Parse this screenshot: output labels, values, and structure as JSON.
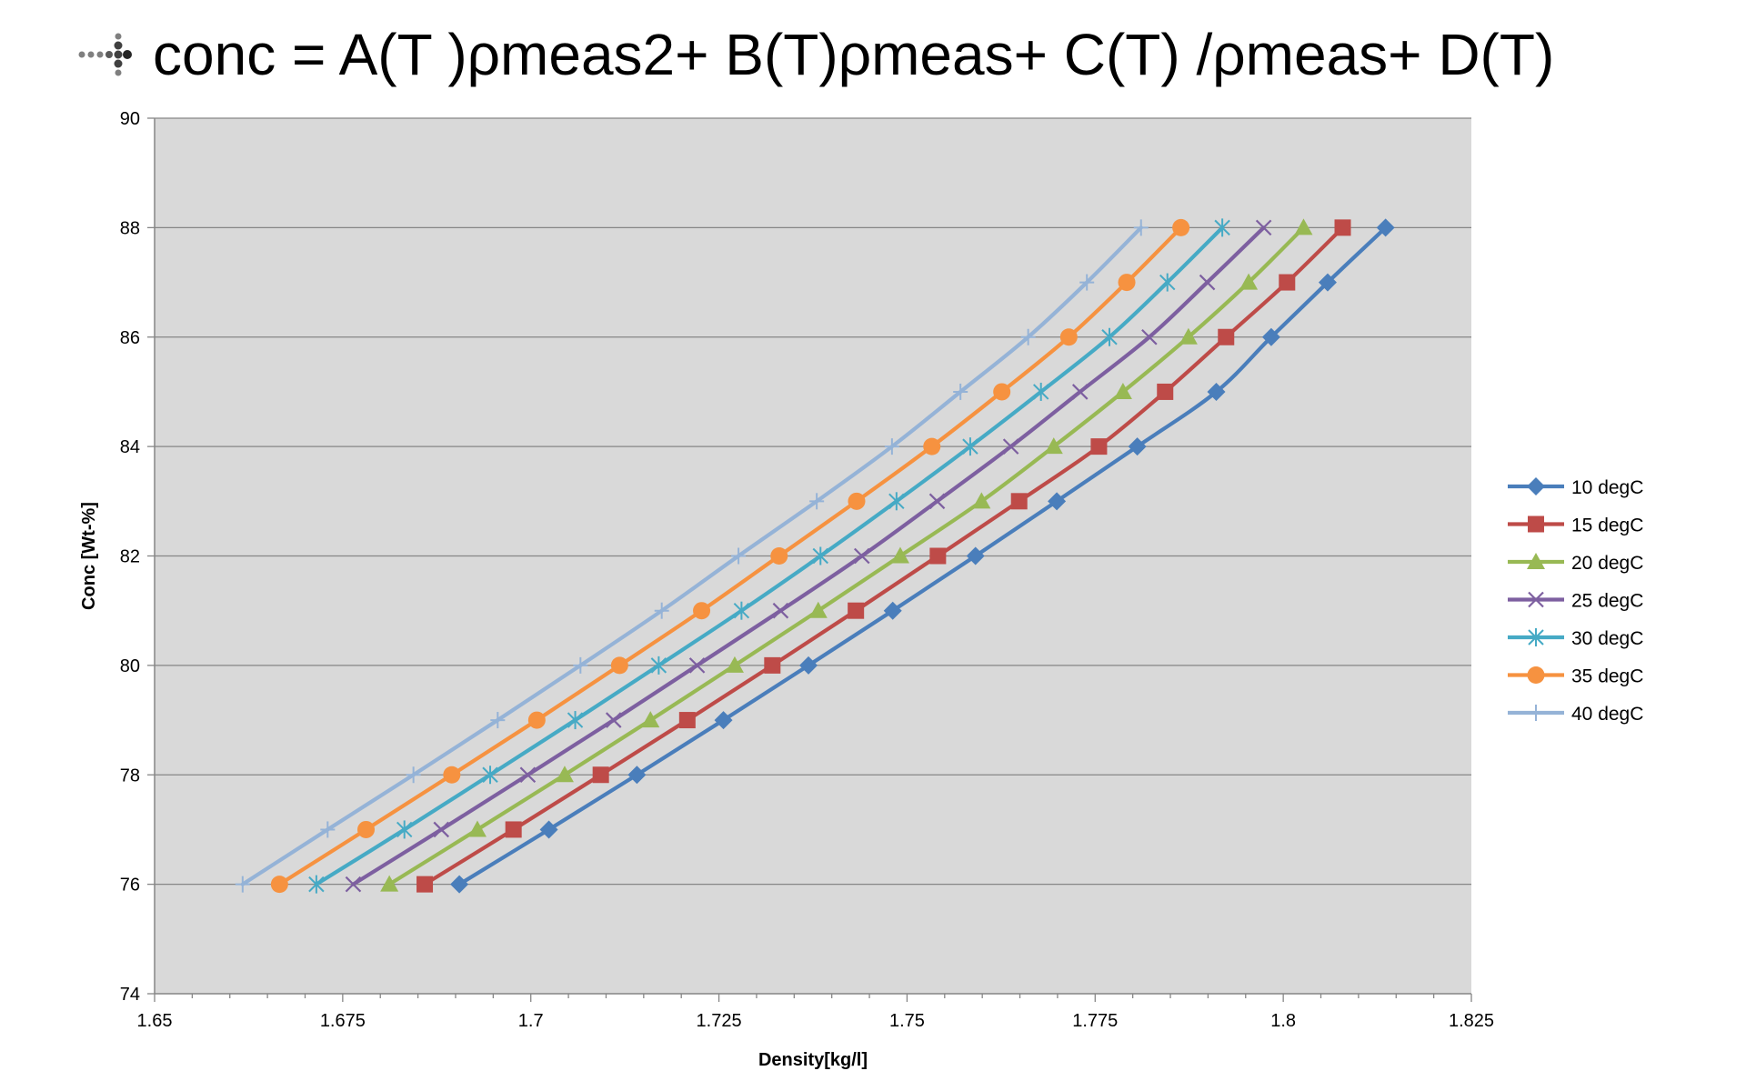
{
  "slide": {
    "title": "conc = A(T )ρmeas2+ B(T)ρmeas+ C(T) /ρmeas+ D(T)",
    "bullet_icon": "dotted-arrow-bullet-icon"
  },
  "chart_data": {
    "type": "line",
    "title": "",
    "xlabel": "Density[kg/l]",
    "ylabel": "Conc [Wt-%]",
    "xlim": [
      1.65,
      1.825
    ],
    "ylim": [
      74,
      90
    ],
    "xticks": [
      1.65,
      1.675,
      1.7,
      1.725,
      1.75,
      1.775,
      1.8,
      1.825
    ],
    "xtick_labels": [
      "1.65",
      "1.675",
      "1.7",
      "1.725",
      "1.75",
      "1.775",
      "1.8",
      "1.825"
    ],
    "yticks": [
      74,
      76,
      78,
      80,
      82,
      84,
      86,
      88,
      90
    ],
    "ytick_labels": [
      "74",
      "76",
      "78",
      "80",
      "82",
      "84",
      "86",
      "88",
      "90"
    ],
    "plot_background": "#d9d9d9",
    "grid": "horizontal",
    "legend_position": "right",
    "y": [
      76,
      77,
      78,
      79,
      80,
      81,
      82,
      83,
      84,
      85,
      86,
      87,
      88
    ],
    "series": [
      {
        "name": "10 degC",
        "color": "#4a7ebb",
        "marker": "diamond",
        "x": [
          1.6905,
          1.7024,
          1.7141,
          1.7256,
          1.7369,
          1.7481,
          1.7591,
          1.7699,
          1.7806,
          1.7911,
          1.7984,
          1.8059,
          1.8136
        ]
      },
      {
        "name": "15 degC",
        "color": "#be4b48",
        "marker": "square",
        "x": [
          1.6859,
          1.6977,
          1.7093,
          1.7208,
          1.7321,
          1.7432,
          1.7541,
          1.7649,
          1.7755,
          1.7843,
          1.7924,
          1.8005,
          1.8079
        ]
      },
      {
        "name": "20 degC",
        "color": "#98b954",
        "marker": "triangle",
        "x": [
          1.6812,
          1.6929,
          1.7045,
          1.7159,
          1.7271,
          1.7382,
          1.7491,
          1.7599,
          1.7695,
          1.7787,
          1.7874,
          1.7954,
          1.8027
        ]
      },
      {
        "name": "25 degC",
        "color": "#7d5fa0",
        "marker": "x",
        "x": [
          1.6764,
          1.6881,
          1.6996,
          1.711,
          1.7221,
          1.7332,
          1.744,
          1.754,
          1.7638,
          1.773,
          1.7822,
          1.7899,
          1.7974
        ]
      },
      {
        "name": "30 degC",
        "color": "#46aac5",
        "marker": "star",
        "x": [
          1.6715,
          1.6832,
          1.6946,
          1.7059,
          1.717,
          1.728,
          1.7385,
          1.7486,
          1.7584,
          1.7678,
          1.7769,
          1.7846,
          1.7919
        ]
      },
      {
        "name": "35 degC",
        "color": "#f69240",
        "marker": "circle",
        "x": [
          1.6666,
          1.6781,
          1.6895,
          1.7008,
          1.7118,
          1.7227,
          1.733,
          1.7433,
          1.7533,
          1.7626,
          1.7715,
          1.7792,
          1.7864
        ]
      },
      {
        "name": "40 degC",
        "color": "#95b3d7",
        "marker": "plus",
        "x": [
          1.6617,
          1.673,
          1.6844,
          1.6956,
          1.7066,
          1.7174,
          1.7276,
          1.738,
          1.748,
          1.7571,
          1.7661,
          1.7739,
          1.7811
        ]
      }
    ]
  }
}
